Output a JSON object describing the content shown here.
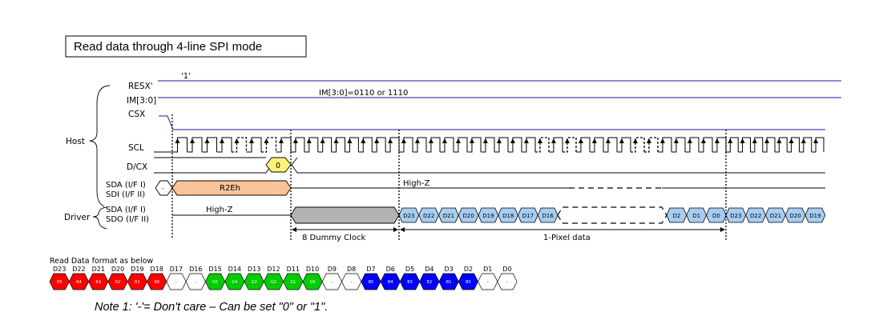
{
  "title": "Read data through 4-line SPI mode",
  "signals": {
    "resx": "RESX'",
    "resx_value": "'1'",
    "im": "IM[3:0]",
    "im_value": "IM[3:0]=0110 or 1110",
    "csx": "CSX",
    "scl": "SCL",
    "dcx": "D/CX",
    "dcx_value": "0",
    "sda_host_1": "SDA (I/F I)",
    "sda_host_2": "SDI (I/F II)",
    "sda_host_dash": "-",
    "command": "R2Eh",
    "host_highz": "High-Z",
    "sda_drv_1": "SDA (I/F I)",
    "sda_drv_2": "SDO (I/F II)",
    "drv_highz": "High-Z"
  },
  "groups": {
    "host": "Host",
    "driver": "Driver"
  },
  "colors": {
    "line_blue": "#1a1aa6",
    "command_fill": "#f9c39a",
    "dcx_fill": "#fff27a",
    "dummy_fill": "#b3b3b3",
    "data_fill": "#a6cdf2",
    "red": "#ff0000",
    "green": "#00cc00",
    "blue": "#0000ff"
  },
  "driver_data_1": [
    "D23",
    "D22",
    "D21",
    "D20",
    "D19",
    "D18",
    "D17",
    "D16"
  ],
  "driver_data_2": [
    "D2",
    "D1",
    "D0"
  ],
  "driver_data_3": [
    "D23",
    "D22",
    "D21",
    "D20",
    "D19"
  ],
  "annotations": {
    "dummy": "8 Dummy Clock",
    "pixel": "1-Pixel data"
  },
  "format": {
    "label": "Read Data format as below",
    "bits": [
      {
        "name": "D23",
        "code": "R5",
        "color": "red"
      },
      {
        "name": "D22",
        "code": "R4",
        "color": "red"
      },
      {
        "name": "D21",
        "code": "R3",
        "color": "red"
      },
      {
        "name": "D20",
        "code": "R2",
        "color": "red"
      },
      {
        "name": "D19",
        "code": "R1",
        "color": "red"
      },
      {
        "name": "D18",
        "code": "R0",
        "color": "red"
      },
      {
        "name": "D17",
        "code": "-",
        "color": "white"
      },
      {
        "name": "D16",
        "code": "-",
        "color": "white"
      },
      {
        "name": "D15",
        "code": "G5",
        "color": "green"
      },
      {
        "name": "D14",
        "code": "G4",
        "color": "green"
      },
      {
        "name": "D13",
        "code": "G3",
        "color": "green"
      },
      {
        "name": "D12",
        "code": "G2",
        "color": "green"
      },
      {
        "name": "D11",
        "code": "G1",
        "color": "green"
      },
      {
        "name": "D10",
        "code": "G0",
        "color": "green"
      },
      {
        "name": "D9",
        "code": "-",
        "color": "white"
      },
      {
        "name": "D8",
        "code": "-",
        "color": "white"
      },
      {
        "name": "D7",
        "code": "B5",
        "color": "blue"
      },
      {
        "name": "D6",
        "code": "B4",
        "color": "blue"
      },
      {
        "name": "D5",
        "code": "B3",
        "color": "blue"
      },
      {
        "name": "D4",
        "code": "B2",
        "color": "blue"
      },
      {
        "name": "D3",
        "code": "B1",
        "color": "blue"
      },
      {
        "name": "D2",
        "code": "B0",
        "color": "blue"
      },
      {
        "name": "D1",
        "code": "-",
        "color": "white"
      },
      {
        "name": "D0",
        "code": "-",
        "color": "white"
      }
    ]
  },
  "note": "Note 1: '-'= Don't care – Can be set \"0\" or \"1\"."
}
